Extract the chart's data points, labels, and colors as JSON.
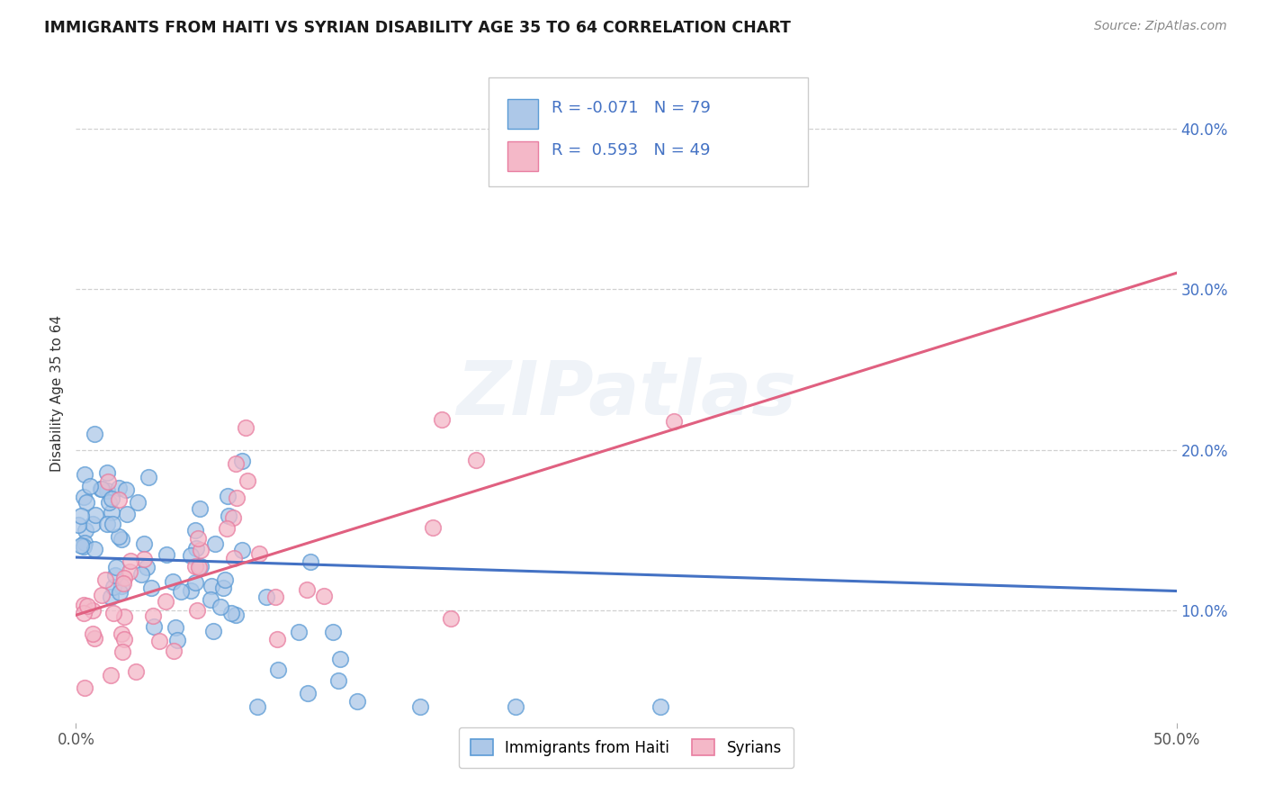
{
  "title": "IMMIGRANTS FROM HAITI VS SYRIAN DISABILITY AGE 35 TO 64 CORRELATION CHART",
  "source": "Source: ZipAtlas.com",
  "ylabel": "Disability Age 35 to 64",
  "xlim": [
    0.0,
    0.5
  ],
  "ylim": [
    0.03,
    0.44
  ],
  "xtick_positions": [
    0.0,
    0.5
  ],
  "xticklabels": [
    "0.0%",
    "50.0%"
  ],
  "ytick_positions": [
    0.1,
    0.2,
    0.3,
    0.4
  ],
  "ytick_labels": [
    "10.0%",
    "20.0%",
    "30.0%",
    "40.0%"
  ],
  "haiti_color": "#adc8e8",
  "haiti_edge_color": "#5b9bd5",
  "syria_color": "#f4b8c8",
  "syria_edge_color": "#e87da0",
  "haiti_R": -0.071,
  "haiti_N": 79,
  "syria_R": 0.593,
  "syria_N": 49,
  "haiti_line_color": "#4472c4",
  "syria_line_color": "#e06080",
  "watermark": "ZIPatlas",
  "legend_haiti_label": "Immigrants from Haiti",
  "legend_syria_label": "Syrians",
  "background_color": "#ffffff",
  "grid_color": "#cccccc",
  "haiti_line_start_y": 0.133,
  "haiti_line_end_y": 0.112,
  "syria_line_start_y": 0.097,
  "syria_line_end_y": 0.31
}
